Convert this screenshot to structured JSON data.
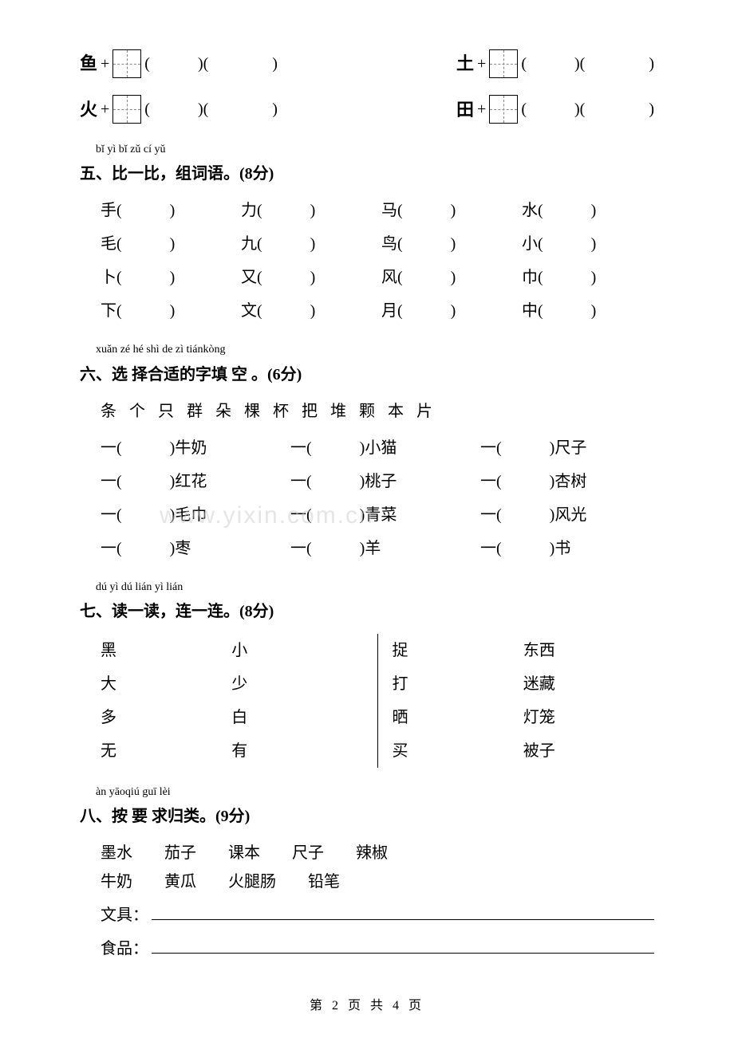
{
  "boxRows": [
    {
      "left": "鱼",
      "right": "土"
    },
    {
      "left": "火",
      "right": "田"
    }
  ],
  "q5": {
    "pinyin": "bǐ yì bǐ  zǔ cí yǔ",
    "title": "五、比一比，组词语。(8分)",
    "rows": [
      [
        "手",
        "力",
        "马",
        "水"
      ],
      [
        "毛",
        "九",
        "鸟",
        "小"
      ],
      [
        "卜",
        "又",
        "风",
        "巾"
      ],
      [
        "下",
        "文",
        "月",
        "中"
      ]
    ]
  },
  "q6": {
    "pinyin": "xuǎn zé hé shì de zì tiánkòng",
    "title": "六、选 择合适的字填 空 。(6分)",
    "words": [
      "条",
      "个",
      "只",
      "群",
      "朵",
      "棵",
      "杯",
      "把",
      "堆",
      "颗",
      "本",
      "片"
    ],
    "items": [
      "牛奶",
      "小猫",
      "尺子",
      "红花",
      "桃子",
      "杏树",
      "毛巾",
      "青菜",
      "风光",
      "枣",
      "羊",
      "书"
    ]
  },
  "q7": {
    "pinyin": "dú yì dú  lián yì lián",
    "title": "七、读一读，连一连。(8分)",
    "left": {
      "a": [
        "黑",
        "大",
        "多",
        "无"
      ],
      "b": [
        "小",
        "少",
        "白",
        "有"
      ]
    },
    "right": {
      "a": [
        "捉",
        "打",
        "晒",
        "买"
      ],
      "b": [
        "东西",
        "迷藏",
        "灯笼",
        "被子"
      ]
    }
  },
  "q8": {
    "pinyin": "àn yāoqiú guī lèi",
    "title": "八、按 要 求归类。(9分)",
    "row1": [
      "墨水",
      "茄子",
      "课本",
      "尺子",
      "辣椒"
    ],
    "row2": [
      "牛奶",
      "黄瓜",
      "火腿肠",
      "铅笔"
    ],
    "line1": "文具：",
    "line2": "食品："
  },
  "watermark": "www.yixin.com.cn",
  "footer": "第 2 页 共 4 页"
}
